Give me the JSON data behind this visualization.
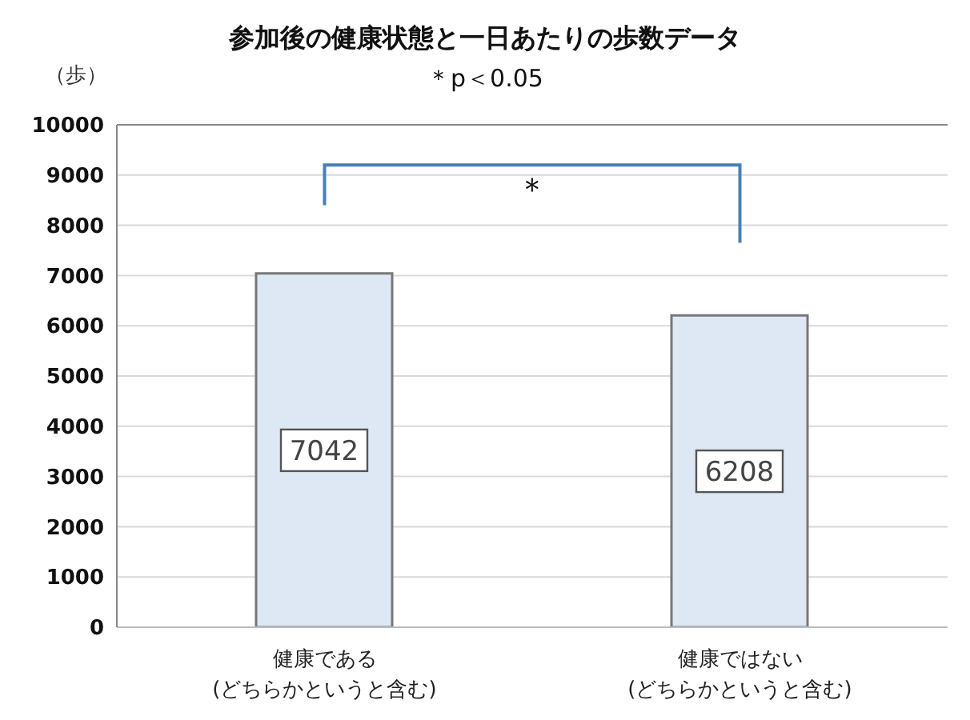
{
  "chart_data": {
    "type": "bar",
    "title": "参加後の健康状態と一日あたりの歩数データ",
    "subtitle": "＊p＜0.05",
    "ylabel": "（歩）",
    "categories": [
      "健康である\n(どちらかというと含む)",
      "健康ではない\n(どちらかというと含む)"
    ],
    "values": [
      7042,
      6208
    ],
    "color": "#dde8f4",
    "ylim": [
      0,
      10000
    ],
    "yticks": [
      0,
      1000,
      2000,
      3000,
      4000,
      5000,
      6000,
      7000,
      8000,
      9000,
      10000
    ],
    "grid": "y",
    "data_labels": true,
    "annotations": [
      "＊"
    ]
  }
}
